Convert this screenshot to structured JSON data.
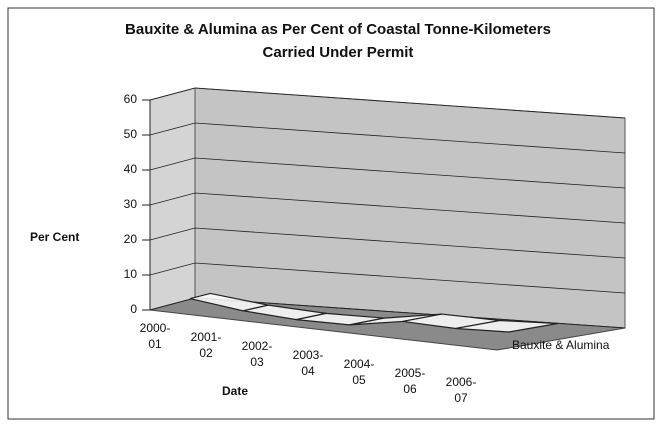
{
  "chart_data": {
    "type": "line3d",
    "title": "Bauxite & Alumina as Per Cent of Coastal Tonne-Kilometers",
    "subtitle": "Carried Under Permit",
    "y_label": "Per Cent",
    "x_label": "Date",
    "categories": [
      "2000-01",
      "2001-02",
      "2002-03",
      "2003-04",
      "2004-05",
      "2005-06",
      "2006-07"
    ],
    "series": [
      {
        "name": "Bauxite & Alumina",
        "color": "#ffffff",
        "values": [
          3,
          1,
          0,
          0,
          2.5,
          2,
          2.5
        ]
      }
    ],
    "ylim": [
      0,
      60
    ],
    "yticks": [
      0,
      10,
      20,
      30,
      40,
      50,
      60
    ],
    "grid": true
  }
}
